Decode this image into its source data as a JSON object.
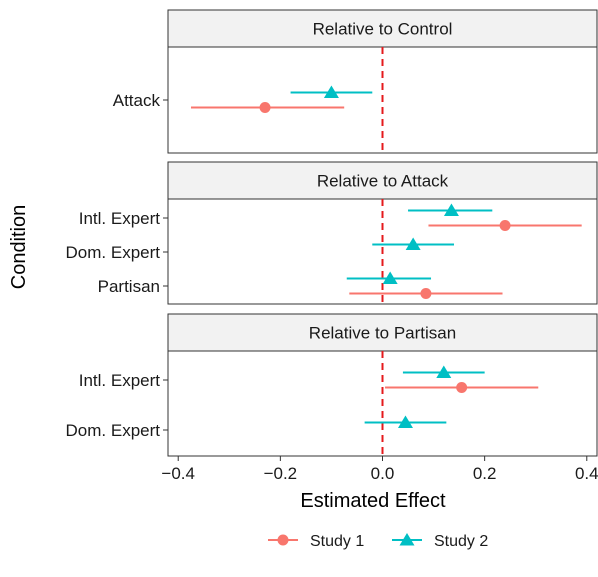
{
  "chart_data": {
    "type": "forest",
    "xlabel": "Estimated Effect",
    "ylabel": "Condition",
    "xlim": [
      -0.42,
      0.42
    ],
    "xticks": [
      -0.4,
      -0.2,
      0.0,
      0.2,
      0.4
    ],
    "xtick_labels": [
      "−0.4",
      "−0.2",
      "0.0",
      "0.2",
      "0.4"
    ],
    "reference_line": 0,
    "reference_line_color": "#e41a1c",
    "grid": false,
    "legend_position": "bottom",
    "series": [
      {
        "name": "Study 1",
        "color": "#f8766d",
        "marker": "circle"
      },
      {
        "name": "Study 2",
        "color": "#00bfc4",
        "marker": "triangle"
      }
    ],
    "panels": [
      {
        "title": "Relative to Control",
        "categories": [
          "Attack"
        ],
        "estimates": [
          {
            "category": "Attack",
            "series": "Study 2",
            "est": -0.1,
            "lo": -0.18,
            "hi": -0.02
          },
          {
            "category": "Attack",
            "series": "Study 1",
            "est": -0.23,
            "lo": -0.375,
            "hi": -0.075
          }
        ]
      },
      {
        "title": "Relative to Attack",
        "categories": [
          "Intl. Expert",
          "Dom. Expert",
          "Partisan"
        ],
        "estimates": [
          {
            "category": "Intl. Expert",
            "series": "Study 2",
            "est": 0.135,
            "lo": 0.05,
            "hi": 0.215
          },
          {
            "category": "Intl. Expert",
            "series": "Study 1",
            "est": 0.24,
            "lo": 0.09,
            "hi": 0.39
          },
          {
            "category": "Dom. Expert",
            "series": "Study 2",
            "est": 0.06,
            "lo": -0.02,
            "hi": 0.14
          },
          {
            "category": "Partisan",
            "series": "Study 2",
            "est": 0.015,
            "lo": -0.07,
            "hi": 0.095
          },
          {
            "category": "Partisan",
            "series": "Study 1",
            "est": 0.085,
            "lo": -0.065,
            "hi": 0.235
          }
        ]
      },
      {
        "title": "Relative to Partisan",
        "categories": [
          "Intl. Expert",
          "Dom. Expert"
        ],
        "estimates": [
          {
            "category": "Intl. Expert",
            "series": "Study 2",
            "est": 0.12,
            "lo": 0.04,
            "hi": 0.2
          },
          {
            "category": "Intl. Expert",
            "series": "Study 1",
            "est": 0.155,
            "lo": 0.005,
            "hi": 0.305
          },
          {
            "category": "Dom. Expert",
            "series": "Study 2",
            "est": 0.045,
            "lo": -0.035,
            "hi": 0.125
          }
        ]
      }
    ]
  }
}
